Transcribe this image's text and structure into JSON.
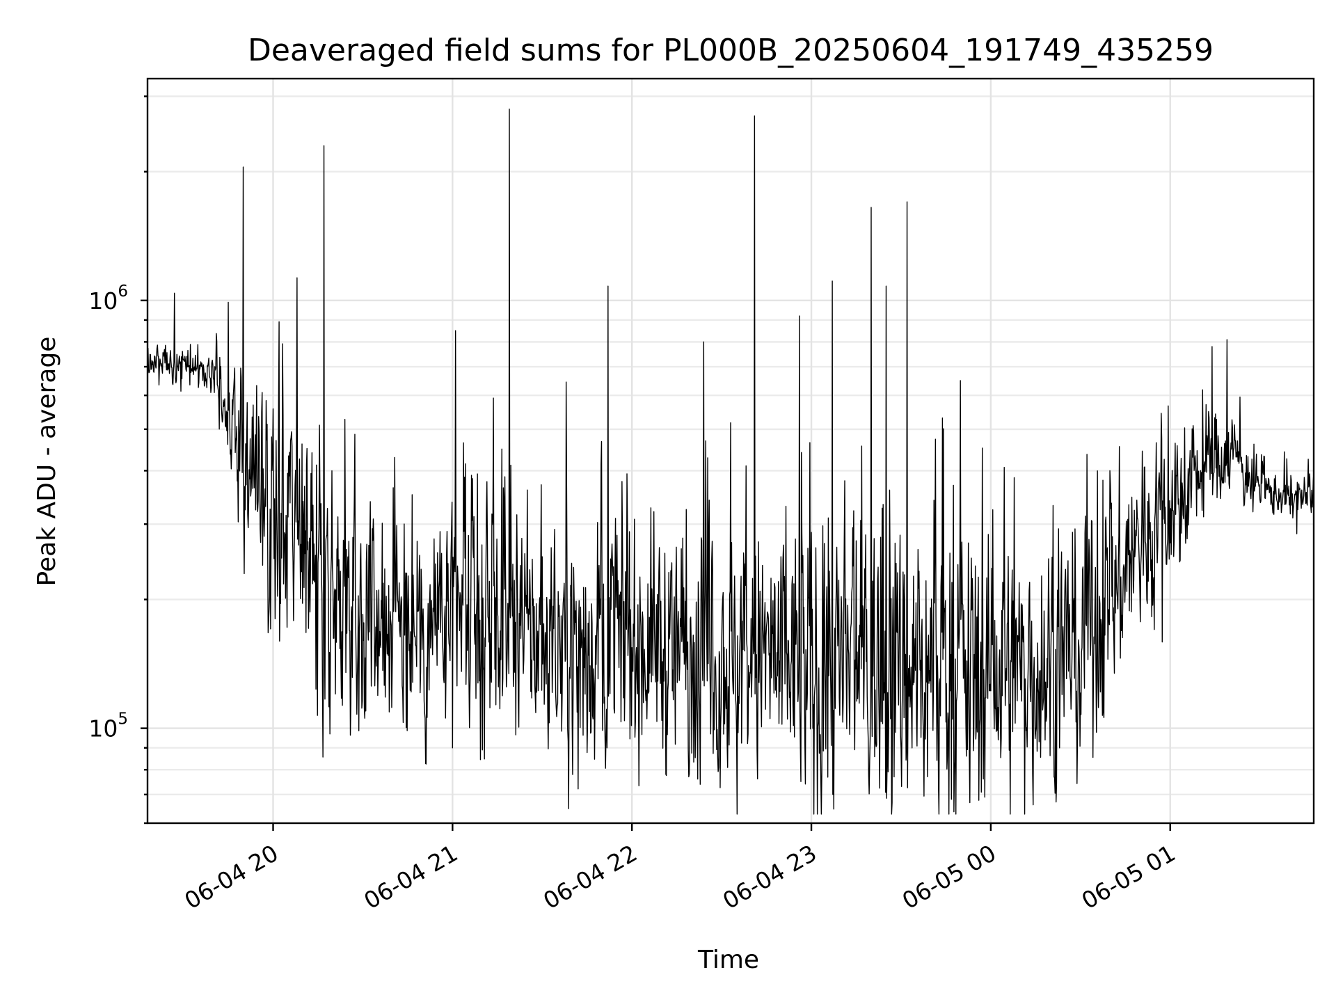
{
  "chart_data": {
    "type": "line",
    "title": "Deaveraged field sums for PL000B_20250604_191749_435259",
    "xlabel": "Time",
    "ylabel": "Peak ADU - average",
    "xscale": "time",
    "yscale": "log",
    "xlim": [
      "2025-06-04 19:18",
      "2025-06-05 01:48"
    ],
    "ylim": [
      60000,
      3300000
    ],
    "grid": true,
    "x_ticks": [
      "06-04 20",
      "06-04 21",
      "06-04 22",
      "06-04 23",
      "06-05 00",
      "06-05 01"
    ],
    "y_ticks": [
      {
        "base": "10",
        "exp": "5",
        "value": 100000
      },
      {
        "base": "10",
        "exp": "6",
        "value": 1000000
      }
    ],
    "series": [
      {
        "color": "#000000",
        "x": [
          "2025-06-04 19:18",
          "2025-06-04 19:30",
          "2025-06-04 19:40",
          "2025-06-04 19:45",
          "2025-06-04 19:50",
          "2025-06-04 20:00",
          "2025-06-04 20:10",
          "2025-06-04 20:20",
          "2025-06-04 20:30",
          "2025-06-04 20:45",
          "2025-06-04 21:00",
          "2025-06-04 21:15",
          "2025-06-04 21:30",
          "2025-06-04 21:45",
          "2025-06-04 22:00",
          "2025-06-04 22:15",
          "2025-06-04 22:30",
          "2025-06-04 22:45",
          "2025-06-04 23:00",
          "2025-06-04 23:15",
          "2025-06-04 23:30",
          "2025-06-04 23:45",
          "2025-06-05 00:00",
          "2025-06-05 00:15",
          "2025-06-05 00:30",
          "2025-06-05 00:40",
          "2025-06-05 00:50",
          "2025-06-05 01:00",
          "2025-06-05 01:10",
          "2025-06-05 01:20",
          "2025-06-05 01:30",
          "2025-06-05 01:40",
          "2025-06-05 01:48"
        ],
        "baseline": [
          740000,
          700000,
          680000,
          560000,
          420000,
          310000,
          240000,
          210000,
          190000,
          180000,
          175000,
          170000,
          165000,
          160000,
          160000,
          155000,
          150000,
          145000,
          140000,
          135000,
          135000,
          140000,
          135000,
          140000,
          155000,
          200000,
          270000,
          330000,
          400000,
          450000,
          360000,
          345000,
          350000
        ],
        "spread": [
          0.12,
          0.12,
          0.15,
          0.35,
          0.6,
          0.75,
          0.8,
          0.8,
          0.75,
          0.75,
          0.75,
          0.75,
          0.75,
          0.75,
          0.75,
          0.8,
          0.8,
          0.85,
          0.9,
          0.9,
          0.95,
          0.95,
          0.9,
          0.8,
          0.75,
          0.7,
          0.6,
          0.5,
          0.35,
          0.3,
          0.15,
          0.15,
          0.15
        ],
        "spikes": [
          {
            "x": "2025-06-04 19:27",
            "y": 1040000
          },
          {
            "x": "2025-06-04 19:45",
            "y": 990000
          },
          {
            "x": "2025-06-04 19:50",
            "y": 2050000
          },
          {
            "x": "2025-06-04 20:08",
            "y": 1130000
          },
          {
            "x": "2025-06-04 20:17",
            "y": 2300000
          },
          {
            "x": "2025-06-04 21:01",
            "y": 850000
          },
          {
            "x": "2025-06-04 21:19",
            "y": 2800000
          },
          {
            "x": "2025-06-04 21:52",
            "y": 1080000
          },
          {
            "x": "2025-06-04 22:24",
            "y": 800000
          },
          {
            "x": "2025-06-04 22:41",
            "y": 2700000
          },
          {
            "x": "2025-06-04 22:56",
            "y": 920000
          },
          {
            "x": "2025-06-04 23:07",
            "y": 1110000
          },
          {
            "x": "2025-06-04 23:20",
            "y": 1650000
          },
          {
            "x": "2025-06-04 23:25",
            "y": 1080000
          },
          {
            "x": "2025-06-04 23:32",
            "y": 1700000
          },
          {
            "x": "2025-06-05 01:14",
            "y": 780000
          },
          {
            "x": "2025-06-05 01:19",
            "y": 810000
          }
        ],
        "dips": [
          {
            "x": "2025-06-04 20:19",
            "y": 97000
          },
          {
            "x": "2025-06-04 21:00",
            "y": 90000
          },
          {
            "x": "2025-06-04 21:10",
            "y": 89000
          },
          {
            "x": "2025-06-04 22:19",
            "y": 77000
          },
          {
            "x": "2025-06-04 23:27",
            "y": 67000
          },
          {
            "x": "2025-06-04 23:53",
            "y": 67000
          },
          {
            "x": "2025-06-04 23:58",
            "y": 69000
          }
        ]
      }
    ]
  }
}
